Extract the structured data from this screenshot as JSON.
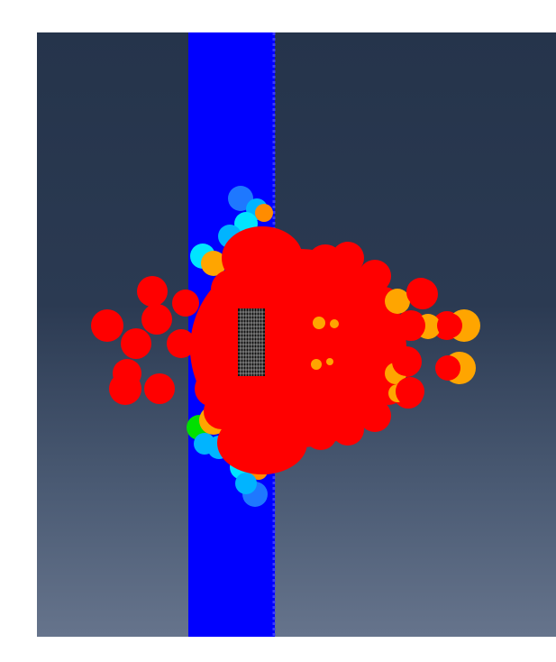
{
  "viewport": {
    "background_top_color": "#25344b",
    "background_bottom_color": "#66748c"
  },
  "plate": {
    "color": "#0000ff"
  },
  "particle_palette": {
    "red": "#ff0000",
    "orange": "#ffa500",
    "light_orange": "#ff8c00",
    "cyan": "#00e5ff",
    "sky_blue": "#00b4ff",
    "azure": "#1e78ff",
    "green": "#00e000"
  },
  "projectile": {
    "color": "#111111",
    "mesh_color": "#ffffff"
  }
}
